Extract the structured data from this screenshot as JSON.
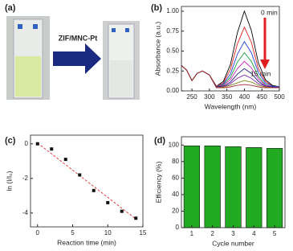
{
  "photo": {
    "label": "(a)",
    "arrow_text": "ZIF/MNC-Pt"
  },
  "chart_data": [
    {
      "type": "line",
      "label": "(b)",
      "xlabel": "Wavelength (nm)",
      "ylabel": "Absorbance (a.u.)",
      "annotations": [
        "0 min",
        "15 min"
      ],
      "x": [
        220,
        235,
        250,
        265,
        280,
        300,
        320,
        340,
        360,
        380,
        400,
        420,
        440,
        460,
        480,
        500
      ],
      "xlim": [
        220,
        500
      ],
      "xticks": [
        250,
        300,
        350,
        400,
        450,
        500
      ],
      "ylim": [
        0,
        1.06
      ],
      "yticks": [
        {
          "value": 0,
          "label": "0.00"
        },
        {
          "value": 0.25,
          "label": "0.25"
        },
        {
          "value": 0.5,
          "label": "0.50"
        },
        {
          "value": 0.75,
          "label": "0.75"
        },
        {
          "value": 1,
          "label": "1.00"
        }
      ],
      "series": [
        {
          "color": "#000000",
          "values": [
            0.32,
            0.26,
            0.13,
            0.22,
            0.25,
            0.2,
            0.06,
            0.12,
            0.33,
            0.73,
            1.0,
            0.76,
            0.35,
            0.14,
            0.07,
            0.05
          ]
        },
        {
          "color": "#e02020",
          "values": [
            0.32,
            0.26,
            0.13,
            0.22,
            0.25,
            0.2,
            0.06,
            0.1,
            0.27,
            0.59,
            0.8,
            0.61,
            0.28,
            0.12,
            0.06,
            0.05
          ]
        },
        {
          "color": "#2040e0",
          "values": [
            0.32,
            0.26,
            0.13,
            0.22,
            0.25,
            0.2,
            0.05,
            0.09,
            0.21,
            0.46,
            0.62,
            0.48,
            0.23,
            0.1,
            0.06,
            0.05
          ]
        },
        {
          "color": "#20a040",
          "values": [
            0.32,
            0.26,
            0.13,
            0.22,
            0.25,
            0.2,
            0.05,
            0.08,
            0.17,
            0.36,
            0.48,
            0.37,
            0.18,
            0.08,
            0.05,
            0.04
          ]
        },
        {
          "color": "#d020c0",
          "values": [
            0.32,
            0.26,
            0.13,
            0.22,
            0.25,
            0.2,
            0.05,
            0.07,
            0.14,
            0.28,
            0.37,
            0.29,
            0.15,
            0.07,
            0.05,
            0.04
          ]
        },
        {
          "color": "#202080",
          "values": [
            0.32,
            0.26,
            0.13,
            0.22,
            0.25,
            0.2,
            0.05,
            0.06,
            0.11,
            0.21,
            0.28,
            0.22,
            0.12,
            0.06,
            0.05,
            0.04
          ]
        },
        {
          "color": "#8020a0",
          "values": [
            0.32,
            0.26,
            0.13,
            0.22,
            0.25,
            0.2,
            0.04,
            0.05,
            0.09,
            0.16,
            0.2,
            0.16,
            0.09,
            0.06,
            0.04,
            0.04
          ]
        },
        {
          "color": "#808020",
          "values": [
            0.32,
            0.26,
            0.13,
            0.22,
            0.25,
            0.2,
            0.04,
            0.05,
            0.07,
            0.1,
            0.13,
            0.11,
            0.07,
            0.05,
            0.04,
            0.04
          ]
        },
        {
          "color": "#a03030",
          "values": [
            0.32,
            0.26,
            0.13,
            0.22,
            0.25,
            0.2,
            0.04,
            0.04,
            0.05,
            0.07,
            0.08,
            0.07,
            0.05,
            0.04,
            0.04,
            0.04
          ]
        }
      ]
    },
    {
      "type": "scatter",
      "label": "(c)",
      "xlabel": "Reaction time (min)",
      "ylabel": "ln (I/I₀)",
      "x": [
        0,
        2,
        4,
        6,
        8,
        10,
        12,
        14
      ],
      "values": [
        0,
        -0.3,
        -0.9,
        -1.8,
        -2.7,
        -3.4,
        -3.9,
        -4.3
      ],
      "color": "#111111",
      "fit": {
        "x": [
          0,
          14
        ],
        "y": [
          0.05,
          -4.35
        ],
        "color": "#e04040"
      },
      "xlim": [
        -1,
        15
      ],
      "xticks": [
        0,
        5,
        10,
        15
      ],
      "ylim": [
        -4.8,
        0.5
      ],
      "yticks": [
        0,
        -2,
        -4
      ]
    },
    {
      "type": "bar",
      "label": "(d)",
      "xlabel": "Cycle number",
      "ylabel": "Efficiency (%)",
      "categories": [
        "1",
        "2",
        "3",
        "4",
        "5"
      ],
      "values": [
        99,
        99,
        98,
        97,
        96
      ],
      "color": "#22aa22",
      "ylim": [
        0,
        110
      ],
      "yticks": [
        0,
        20,
        40,
        60,
        80,
        100
      ]
    }
  ]
}
